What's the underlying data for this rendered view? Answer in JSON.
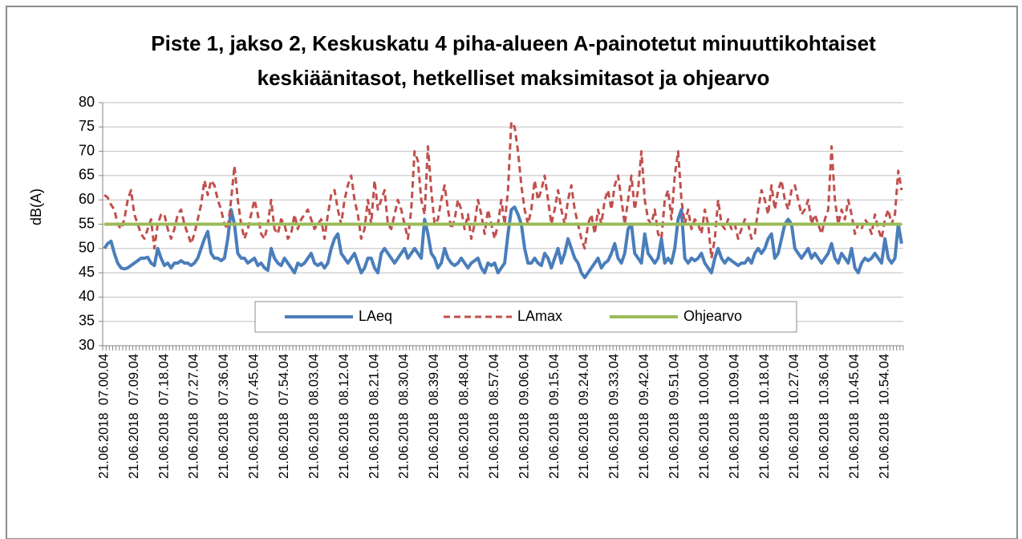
{
  "chart_data": {
    "type": "line",
    "title": [
      "Piste 1, jakso 2, Keskuskatu 4 piha-alueen A-painotetut minuuttikohtaiset",
      "keskiäänitasot, hetkelliset maksimitasot ja ohjearvo"
    ],
    "ylabel": "dB(A)",
    "categories": [
      "21.06.2018  07.00.04",
      null,
      null,
      null,
      null,
      null,
      null,
      null,
      null,
      "21.06.2018  07.09.04",
      null,
      null,
      null,
      null,
      null,
      null,
      null,
      null,
      "21.06.2018  07.18.04",
      null,
      null,
      null,
      null,
      null,
      null,
      null,
      null,
      "21.06.2018  07.27.04",
      null,
      null,
      null,
      null,
      null,
      null,
      null,
      null,
      "21.06.2018  07.36.04",
      null,
      null,
      null,
      null,
      null,
      null,
      null,
      null,
      "21.06.2018  07.45.04",
      null,
      null,
      null,
      null,
      null,
      null,
      null,
      null,
      "21.06.2018  07.54.04",
      null,
      null,
      null,
      null,
      null,
      null,
      null,
      null,
      "21.06.2018  08.03.04",
      null,
      null,
      null,
      null,
      null,
      null,
      null,
      null,
      "21.06.2018  08.12.04",
      null,
      null,
      null,
      null,
      null,
      null,
      null,
      null,
      "21.06.2018  08.21.04",
      null,
      null,
      null,
      null,
      null,
      null,
      null,
      null,
      "21.06.2018  08.30.04",
      null,
      null,
      null,
      null,
      null,
      null,
      null,
      null,
      "21.06.2018  08.39.04",
      null,
      null,
      null,
      null,
      null,
      null,
      null,
      null,
      "21.06.2018  08.48.04",
      null,
      null,
      null,
      null,
      null,
      null,
      null,
      null,
      "21.06.2018  08.57.04",
      null,
      null,
      null,
      null,
      null,
      null,
      null,
      null,
      "21.06.2018  09.06.04",
      null,
      null,
      null,
      null,
      null,
      null,
      null,
      null,
      "21.06.2018  09.15.04",
      null,
      null,
      null,
      null,
      null,
      null,
      null,
      null,
      "21.06.2018  09.24.04",
      null,
      null,
      null,
      null,
      null,
      null,
      null,
      null,
      "21.06.2018  09.33.04",
      null,
      null,
      null,
      null,
      null,
      null,
      null,
      null,
      "21.06.2018  09.42.04",
      null,
      null,
      null,
      null,
      null,
      null,
      null,
      null,
      "21.06.2018  09.51.04",
      null,
      null,
      null,
      null,
      null,
      null,
      null,
      null,
      "21.06.2018  10.00.04",
      null,
      null,
      null,
      null,
      null,
      null,
      null,
      null,
      "21.06.2018  10.09.04",
      null,
      null,
      null,
      null,
      null,
      null,
      null,
      null,
      "21.06.2018  10.18.04",
      null,
      null,
      null,
      null,
      null,
      null,
      null,
      null,
      "21.06.2018  10.27.04",
      null,
      null,
      null,
      null,
      null,
      null,
      null,
      null,
      "21.06.2018  10.36.04",
      null,
      null,
      null,
      null,
      null,
      null,
      null,
      null,
      "21.06.2018  10.45.04",
      null,
      null,
      null,
      null,
      null,
      null,
      null,
      null,
      "21.06.2018  10.54.04",
      null,
      null,
      null,
      null,
      null
    ],
    "series": [
      {
        "name": "LAeq",
        "color": "#4a7ebb",
        "dash": false,
        "values": [
          50,
          51,
          51.5,
          49,
          47,
          46,
          45.8,
          46,
          46.5,
          47,
          47.5,
          48,
          48,
          48.2,
          47,
          46.5,
          50,
          48,
          46.5,
          47,
          46,
          47,
          47,
          47.5,
          47,
          47,
          46.5,
          47,
          48,
          50,
          52,
          53.5,
          49,
          48,
          48,
          47.5,
          48,
          52,
          58,
          55,
          49,
          48,
          48,
          47,
          47.5,
          48,
          46.5,
          47,
          46,
          45.5,
          50,
          48,
          47,
          46.5,
          48,
          47,
          46,
          45,
          47,
          46.5,
          47,
          48,
          49,
          47,
          46.5,
          47,
          46,
          47,
          50,
          52,
          53,
          49,
          48,
          47,
          48,
          49,
          47,
          45,
          46,
          48,
          48,
          46,
          45,
          49,
          50,
          49,
          48,
          47,
          48,
          49,
          50,
          48,
          49,
          50,
          49,
          48,
          56,
          53,
          49,
          48,
          46,
          47,
          50,
          48,
          47,
          46.5,
          47,
          48,
          47,
          46,
          47,
          47.5,
          48,
          46,
          45,
          47,
          46.5,
          47,
          45,
          46,
          47,
          53,
          58,
          58.5,
          57,
          55,
          50,
          47,
          47,
          48,
          47,
          46.5,
          49,
          48,
          46,
          48,
          50,
          47,
          49,
          52,
          50,
          48,
          47,
          45,
          44,
          45,
          46,
          47,
          48,
          46,
          47,
          47.5,
          49,
          51,
          48,
          47,
          49,
          54,
          55,
          49,
          48,
          47,
          53,
          49,
          48,
          47,
          48,
          52,
          47,
          48,
          47,
          50,
          56,
          58,
          48,
          47,
          48,
          47.5,
          48,
          49,
          47,
          46,
          45,
          48,
          50,
          48,
          47,
          48,
          47.5,
          47,
          46.5,
          47,
          47,
          48,
          47,
          49,
          50,
          49,
          50,
          52,
          53,
          48,
          49,
          52,
          55,
          56,
          55,
          50,
          49,
          48,
          49,
          50,
          48,
          49,
          48,
          47,
          48,
          49,
          51,
          48,
          47,
          49,
          48,
          47,
          50,
          46,
          45,
          47,
          48,
          47.5,
          48,
          49,
          48,
          47,
          52,
          48,
          47,
          48,
          55,
          51
        ]
      },
      {
        "name": "LAmax",
        "color": "#c0504d",
        "dash": true,
        "values": [
          61,
          60.5,
          59,
          58,
          55,
          54,
          56,
          60,
          62,
          57,
          55,
          53,
          52,
          54,
          56,
          50,
          55,
          57,
          57,
          54,
          52,
          54,
          57,
          58,
          55,
          53,
          51,
          53,
          56,
          59,
          64,
          61,
          64,
          63,
          60,
          58,
          55,
          54,
          60,
          67,
          60,
          55,
          52,
          54,
          57,
          60,
          57,
          53,
          52,
          55,
          60,
          54,
          53,
          56,
          55,
          52,
          53,
          57,
          54,
          56,
          57,
          58,
          56,
          54,
          55,
          56,
          52,
          57,
          61,
          62,
          58,
          55,
          60,
          63,
          65,
          60,
          57,
          52,
          54,
          60,
          55,
          64,
          58,
          60,
          62,
          55,
          54,
          57,
          60,
          58,
          55,
          52,
          58,
          70,
          68,
          60,
          57,
          71,
          62,
          55,
          56,
          60,
          63,
          58,
          54,
          56,
          60,
          58,
          54,
          57,
          52,
          55,
          60,
          57,
          53,
          58,
          55,
          52,
          55,
          60,
          55,
          62,
          76,
          75,
          70,
          63,
          58,
          55,
          58,
          64,
          60,
          62,
          65,
          60,
          55,
          58,
          62,
          58,
          55,
          60,
          63,
          58,
          55,
          52,
          50,
          55,
          57,
          53,
          58,
          55,
          60,
          62,
          58,
          63,
          65,
          60,
          55,
          60,
          65,
          58,
          62,
          70,
          60,
          56,
          55,
          58,
          53,
          52,
          60,
          62,
          56,
          65,
          70,
          60,
          55,
          58,
          54,
          56,
          55,
          53,
          58,
          55,
          48,
          52,
          60,
          55,
          54,
          56,
          54,
          55,
          52,
          54,
          56,
          55,
          52,
          53,
          58,
          62,
          60,
          57,
          63,
          58,
          62,
          64,
          60,
          58,
          62,
          63,
          60,
          57,
          58,
          60,
          55,
          57,
          55,
          53,
          56,
          58,
          71,
          60,
          55,
          58,
          56,
          60,
          57,
          53,
          55,
          54,
          56,
          55,
          53,
          57,
          54,
          52,
          56,
          58,
          55,
          57,
          66,
          62
        ]
      },
      {
        "name": "Ohjearvo",
        "color": "#9bbb59",
        "dash": false,
        "values": [
          55,
          55,
          55,
          55,
          55,
          55,
          55,
          55,
          55,
          55,
          55,
          55,
          55,
          55,
          55,
          55,
          55,
          55,
          55,
          55,
          55,
          55,
          55,
          55,
          55,
          55,
          55,
          55,
          55,
          55,
          55,
          55,
          55,
          55,
          55,
          55,
          55,
          55,
          55,
          55,
          55,
          55,
          55,
          55,
          55,
          55,
          55,
          55,
          55,
          55,
          55,
          55,
          55,
          55,
          55,
          55,
          55,
          55,
          55,
          55,
          55,
          55,
          55,
          55,
          55,
          55,
          55,
          55,
          55,
          55,
          55,
          55,
          55,
          55,
          55,
          55,
          55,
          55,
          55,
          55,
          55,
          55,
          55,
          55,
          55,
          55,
          55,
          55,
          55,
          55,
          55,
          55,
          55,
          55,
          55,
          55,
          55,
          55,
          55,
          55,
          55,
          55,
          55,
          55,
          55,
          55,
          55,
          55,
          55,
          55,
          55,
          55,
          55,
          55,
          55,
          55,
          55,
          55,
          55,
          55,
          55,
          55,
          55,
          55,
          55,
          55,
          55,
          55,
          55,
          55,
          55,
          55,
          55,
          55,
          55,
          55,
          55,
          55,
          55,
          55,
          55,
          55,
          55,
          55,
          55,
          55,
          55,
          55,
          55,
          55,
          55,
          55,
          55,
          55,
          55,
          55,
          55,
          55,
          55,
          55,
          55,
          55,
          55,
          55,
          55,
          55,
          55,
          55,
          55,
          55,
          55,
          55,
          55,
          55,
          55,
          55,
          55,
          55,
          55,
          55,
          55,
          55,
          55,
          55,
          55,
          55,
          55,
          55,
          55,
          55,
          55,
          55,
          55,
          55,
          55,
          55,
          55,
          55,
          55,
          55,
          55,
          55,
          55,
          55,
          55,
          55,
          55,
          55,
          55,
          55,
          55,
          55,
          55,
          55,
          55,
          55,
          55,
          55,
          55,
          55,
          55,
          55,
          55,
          55,
          55,
          55,
          55,
          55,
          55,
          55,
          55,
          55,
          55,
          55,
          55,
          55,
          55,
          55,
          55,
          55
        ]
      }
    ],
    "ylim": [
      30,
      80
    ],
    "yticks": [
      30,
      35,
      40,
      45,
      50,
      55,
      60,
      65,
      70,
      75,
      80
    ],
    "grid": true,
    "legend": "bottom"
  }
}
